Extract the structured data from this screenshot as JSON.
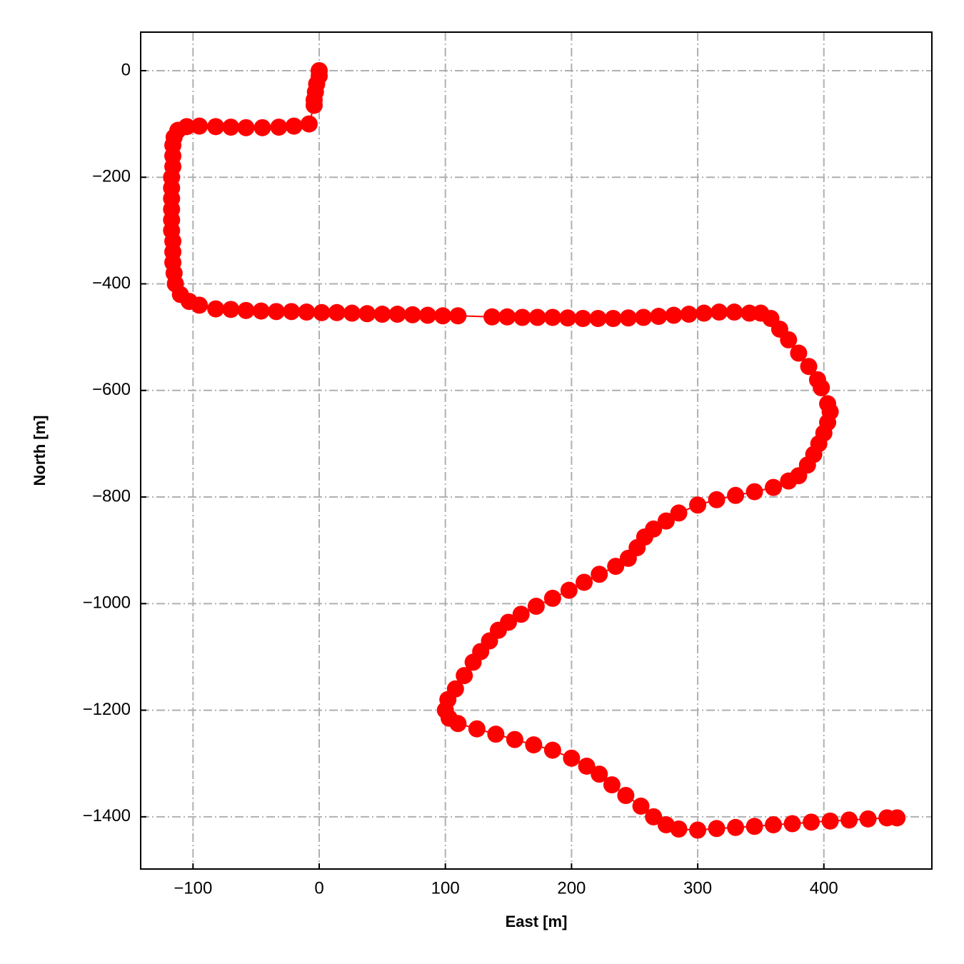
{
  "chart_data": {
    "type": "scatter",
    "xlabel": "East [m]",
    "ylabel": "North [m]",
    "xlim": [
      -141.5,
      485.6
    ],
    "ylim": [
      -1498,
      72.3
    ],
    "xticks": [
      {
        "value": -100,
        "label": "−100"
      },
      0,
      100,
      200,
      300,
      400
    ],
    "yticks": [
      0,
      {
        "value": -200,
        "label": "−200"
      },
      {
        "value": -400,
        "label": "−400"
      },
      {
        "value": -600,
        "label": "−600"
      },
      {
        "value": -800,
        "label": "−800"
      },
      {
        "value": -1000,
        "label": "−1000"
      },
      {
        "value": -1200,
        "label": "−1200"
      },
      {
        "value": -1400,
        "label": "−1400"
      }
    ],
    "grid": true,
    "series": [
      {
        "color": "#ff0000",
        "x": [
          0,
          0,
          -2,
          -3,
          -4,
          -4,
          -8,
          -20,
          -32,
          -45,
          -58,
          -70,
          -82,
          -95,
          -105,
          -112,
          -115,
          -116,
          -116,
          -116,
          -117,
          -117,
          -117,
          -117,
          -117,
          -117,
          -116,
          -116,
          -116,
          -115,
          -114,
          -110,
          -103,
          -95,
          -82,
          -70,
          -58,
          -46,
          -34,
          -22,
          -10,
          2,
          14,
          26,
          38,
          50,
          62,
          74,
          86,
          98,
          110,
          137,
          149,
          161,
          173,
          185,
          197,
          209,
          221,
          233,
          245,
          257,
          269,
          281,
          293,
          305,
          317,
          329,
          341,
          350,
          358,
          365,
          372,
          380,
          388,
          395,
          398,
          403,
          405,
          403,
          400,
          396,
          392,
          387,
          380,
          372,
          360,
          345,
          330,
          315,
          300,
          285,
          275,
          265,
          258,
          252,
          245,
          235,
          222,
          210,
          198,
          185,
          172,
          160,
          150,
          142,
          135,
          128,
          122,
          115,
          108,
          102,
          100,
          103,
          110,
          125,
          140,
          155,
          170,
          185,
          200,
          212,
          222,
          232,
          243,
          255,
          265,
          275,
          285,
          300,
          315,
          330,
          345,
          360,
          375,
          390,
          405,
          420,
          435,
          450,
          458
        ],
        "y": [
          0,
          -10,
          -25,
          -40,
          -55,
          -65,
          -100,
          -104,
          -106,
          -107,
          -107,
          -106,
          -105,
          -104,
          -105,
          -112,
          -125,
          -140,
          -160,
          -180,
          -200,
          -220,
          -240,
          -260,
          -280,
          -300,
          -320,
          -340,
          -360,
          -380,
          -400,
          -420,
          -433,
          -440,
          -447,
          -448,
          -450,
          -451,
          -452,
          -452,
          -453,
          -454,
          -454,
          -455,
          -456,
          -457,
          -457,
          -458,
          -459,
          -460,
          -460,
          -462,
          -462,
          -463,
          -463,
          -463,
          -464,
          -465,
          -465,
          -465,
          -464,
          -463,
          -461,
          -459,
          -457,
          -455,
          -453,
          -453,
          -455,
          -455,
          -465,
          -485,
          -505,
          -530,
          -555,
          -580,
          -595,
          -625,
          -640,
          -660,
          -680,
          -700,
          -720,
          -740,
          -760,
          -770,
          -782,
          -790,
          -797,
          -805,
          -815,
          -830,
          -845,
          -860,
          -875,
          -895,
          -915,
          -930,
          -945,
          -960,
          -975,
          -990,
          -1005,
          -1020,
          -1035,
          -1050,
          -1070,
          -1090,
          -1110,
          -1135,
          -1160,
          -1180,
          -1200,
          -1215,
          -1225,
          -1235,
          -1245,
          -1255,
          -1265,
          -1275,
          -1290,
          -1305,
          -1320,
          -1340,
          -1360,
          -1380,
          -1400,
          -1415,
          -1423,
          -1425,
          -1422,
          -1420,
          -1418,
          -1415,
          -1413,
          -1410,
          -1408,
          -1406,
          -1404,
          -1402,
          -1402
        ]
      }
    ]
  }
}
